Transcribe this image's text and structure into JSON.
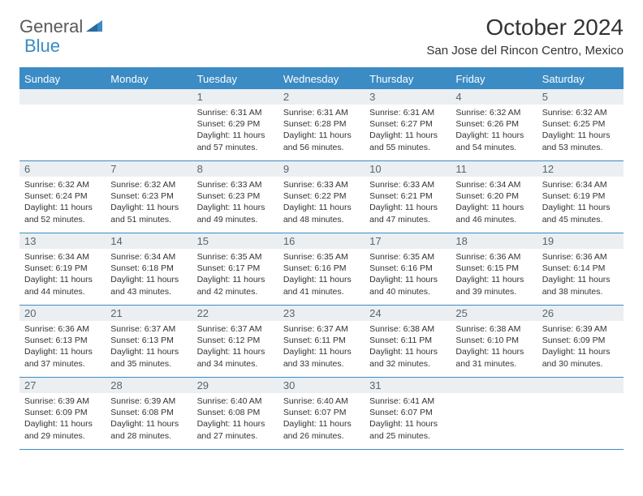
{
  "logo": {
    "part1": "General",
    "part2": "Blue"
  },
  "title": "October 2024",
  "location": "San Jose del Rincon Centro, Mexico",
  "colors": {
    "accent": "#3b8bc4",
    "day_num_bg": "#eceff1",
    "day_num_fg": "#546674",
    "bg": "#ffffff",
    "text": "#333333"
  },
  "day_labels": [
    "Sunday",
    "Monday",
    "Tuesday",
    "Wednesday",
    "Thursday",
    "Friday",
    "Saturday"
  ],
  "weeks": [
    [
      {
        "num": "",
        "sunrise": "",
        "sunset": "",
        "daylight": ""
      },
      {
        "num": "",
        "sunrise": "",
        "sunset": "",
        "daylight": ""
      },
      {
        "num": "1",
        "sunrise": "Sunrise: 6:31 AM",
        "sunset": "Sunset: 6:29 PM",
        "daylight": "Daylight: 11 hours and 57 minutes."
      },
      {
        "num": "2",
        "sunrise": "Sunrise: 6:31 AM",
        "sunset": "Sunset: 6:28 PM",
        "daylight": "Daylight: 11 hours and 56 minutes."
      },
      {
        "num": "3",
        "sunrise": "Sunrise: 6:31 AM",
        "sunset": "Sunset: 6:27 PM",
        "daylight": "Daylight: 11 hours and 55 minutes."
      },
      {
        "num": "4",
        "sunrise": "Sunrise: 6:32 AM",
        "sunset": "Sunset: 6:26 PM",
        "daylight": "Daylight: 11 hours and 54 minutes."
      },
      {
        "num": "5",
        "sunrise": "Sunrise: 6:32 AM",
        "sunset": "Sunset: 6:25 PM",
        "daylight": "Daylight: 11 hours and 53 minutes."
      }
    ],
    [
      {
        "num": "6",
        "sunrise": "Sunrise: 6:32 AM",
        "sunset": "Sunset: 6:24 PM",
        "daylight": "Daylight: 11 hours and 52 minutes."
      },
      {
        "num": "7",
        "sunrise": "Sunrise: 6:32 AM",
        "sunset": "Sunset: 6:23 PM",
        "daylight": "Daylight: 11 hours and 51 minutes."
      },
      {
        "num": "8",
        "sunrise": "Sunrise: 6:33 AM",
        "sunset": "Sunset: 6:23 PM",
        "daylight": "Daylight: 11 hours and 49 minutes."
      },
      {
        "num": "9",
        "sunrise": "Sunrise: 6:33 AM",
        "sunset": "Sunset: 6:22 PM",
        "daylight": "Daylight: 11 hours and 48 minutes."
      },
      {
        "num": "10",
        "sunrise": "Sunrise: 6:33 AM",
        "sunset": "Sunset: 6:21 PM",
        "daylight": "Daylight: 11 hours and 47 minutes."
      },
      {
        "num": "11",
        "sunrise": "Sunrise: 6:34 AM",
        "sunset": "Sunset: 6:20 PM",
        "daylight": "Daylight: 11 hours and 46 minutes."
      },
      {
        "num": "12",
        "sunrise": "Sunrise: 6:34 AM",
        "sunset": "Sunset: 6:19 PM",
        "daylight": "Daylight: 11 hours and 45 minutes."
      }
    ],
    [
      {
        "num": "13",
        "sunrise": "Sunrise: 6:34 AM",
        "sunset": "Sunset: 6:19 PM",
        "daylight": "Daylight: 11 hours and 44 minutes."
      },
      {
        "num": "14",
        "sunrise": "Sunrise: 6:34 AM",
        "sunset": "Sunset: 6:18 PM",
        "daylight": "Daylight: 11 hours and 43 minutes."
      },
      {
        "num": "15",
        "sunrise": "Sunrise: 6:35 AM",
        "sunset": "Sunset: 6:17 PM",
        "daylight": "Daylight: 11 hours and 42 minutes."
      },
      {
        "num": "16",
        "sunrise": "Sunrise: 6:35 AM",
        "sunset": "Sunset: 6:16 PM",
        "daylight": "Daylight: 11 hours and 41 minutes."
      },
      {
        "num": "17",
        "sunrise": "Sunrise: 6:35 AM",
        "sunset": "Sunset: 6:16 PM",
        "daylight": "Daylight: 11 hours and 40 minutes."
      },
      {
        "num": "18",
        "sunrise": "Sunrise: 6:36 AM",
        "sunset": "Sunset: 6:15 PM",
        "daylight": "Daylight: 11 hours and 39 minutes."
      },
      {
        "num": "19",
        "sunrise": "Sunrise: 6:36 AM",
        "sunset": "Sunset: 6:14 PM",
        "daylight": "Daylight: 11 hours and 38 minutes."
      }
    ],
    [
      {
        "num": "20",
        "sunrise": "Sunrise: 6:36 AM",
        "sunset": "Sunset: 6:13 PM",
        "daylight": "Daylight: 11 hours and 37 minutes."
      },
      {
        "num": "21",
        "sunrise": "Sunrise: 6:37 AM",
        "sunset": "Sunset: 6:13 PM",
        "daylight": "Daylight: 11 hours and 35 minutes."
      },
      {
        "num": "22",
        "sunrise": "Sunrise: 6:37 AM",
        "sunset": "Sunset: 6:12 PM",
        "daylight": "Daylight: 11 hours and 34 minutes."
      },
      {
        "num": "23",
        "sunrise": "Sunrise: 6:37 AM",
        "sunset": "Sunset: 6:11 PM",
        "daylight": "Daylight: 11 hours and 33 minutes."
      },
      {
        "num": "24",
        "sunrise": "Sunrise: 6:38 AM",
        "sunset": "Sunset: 6:11 PM",
        "daylight": "Daylight: 11 hours and 32 minutes."
      },
      {
        "num": "25",
        "sunrise": "Sunrise: 6:38 AM",
        "sunset": "Sunset: 6:10 PM",
        "daylight": "Daylight: 11 hours and 31 minutes."
      },
      {
        "num": "26",
        "sunrise": "Sunrise: 6:39 AM",
        "sunset": "Sunset: 6:09 PM",
        "daylight": "Daylight: 11 hours and 30 minutes."
      }
    ],
    [
      {
        "num": "27",
        "sunrise": "Sunrise: 6:39 AM",
        "sunset": "Sunset: 6:09 PM",
        "daylight": "Daylight: 11 hours and 29 minutes."
      },
      {
        "num": "28",
        "sunrise": "Sunrise: 6:39 AM",
        "sunset": "Sunset: 6:08 PM",
        "daylight": "Daylight: 11 hours and 28 minutes."
      },
      {
        "num": "29",
        "sunrise": "Sunrise: 6:40 AM",
        "sunset": "Sunset: 6:08 PM",
        "daylight": "Daylight: 11 hours and 27 minutes."
      },
      {
        "num": "30",
        "sunrise": "Sunrise: 6:40 AM",
        "sunset": "Sunset: 6:07 PM",
        "daylight": "Daylight: 11 hours and 26 minutes."
      },
      {
        "num": "31",
        "sunrise": "Sunrise: 6:41 AM",
        "sunset": "Sunset: 6:07 PM",
        "daylight": "Daylight: 11 hours and 25 minutes."
      },
      {
        "num": "",
        "sunrise": "",
        "sunset": "",
        "daylight": ""
      },
      {
        "num": "",
        "sunrise": "",
        "sunset": "",
        "daylight": ""
      }
    ]
  ]
}
